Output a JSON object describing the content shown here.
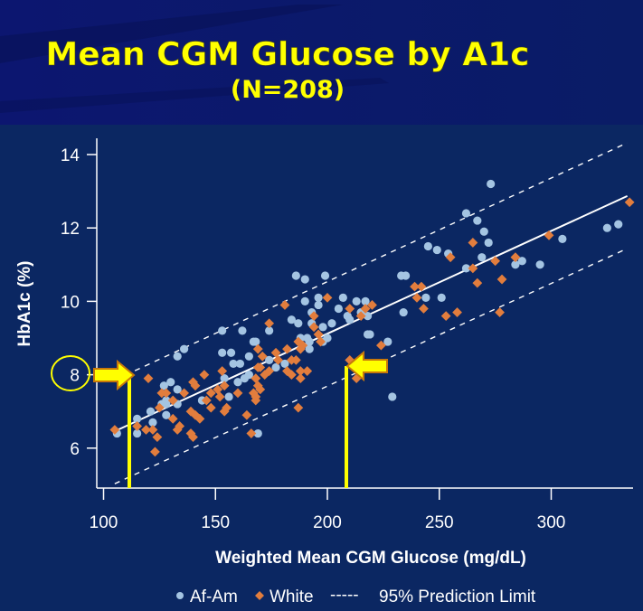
{
  "slide": {
    "title": "Mean CGM Glucose by A1c",
    "subtitle": "(N=208)"
  },
  "colors": {
    "header_bg": "#0a1a6e",
    "plot_bg": "#0b2762",
    "title": "#ffff00",
    "af_am": "#a4c4e2",
    "white": "#e27d3d",
    "annotation": "#ffff00",
    "annotation_outline": "#c8780a"
  },
  "chart_data": {
    "type": "scatter",
    "xlabel": "Weighted Mean CGM Glucose (mg/dL)",
    "ylabel": "HbA1c (%)",
    "xlim": [
      97,
      337
    ],
    "ylim": [
      4.9,
      14.45
    ],
    "x_ticks": [
      "100",
      "150",
      "200",
      "250",
      "300"
    ],
    "y_ticks": [
      "6",
      "8",
      "10",
      "12",
      "14"
    ],
    "grid": false,
    "legend_position": "bottom",
    "legend": {
      "af_am": "Af-Am",
      "white": "White",
      "dash_symbol": "-----",
      "prediction": "95% Prediction Limit"
    },
    "series": [
      {
        "name": "Af-Am",
        "marker": "circle",
        "points": [
          [
            106,
            6.4
          ],
          [
            115,
            6.8
          ],
          [
            115,
            6.4
          ],
          [
            121,
            7.0
          ],
          [
            122,
            6.7
          ],
          [
            127,
            7.7
          ],
          [
            130,
            7.8
          ],
          [
            133,
            7.6
          ],
          [
            128,
            7.3
          ],
          [
            126,
            7.2
          ],
          [
            128,
            7.2
          ],
          [
            133,
            7.2
          ],
          [
            128,
            6.9
          ],
          [
            133,
            8.5
          ],
          [
            136,
            8.7
          ],
          [
            153,
            9.2
          ],
          [
            162,
            9.2
          ],
          [
            153,
            8.6
          ],
          [
            157,
            8.6
          ],
          [
            158,
            8.3
          ],
          [
            161,
            8.3
          ],
          [
            165,
            8.5
          ],
          [
            167,
            8.9
          ],
          [
            154,
            7.9
          ],
          [
            160,
            7.8
          ],
          [
            144,
            7.3
          ],
          [
            156,
            7.4
          ],
          [
            163,
            7.9
          ],
          [
            165,
            8.0
          ],
          [
            169,
            6.4
          ],
          [
            186,
            10.7
          ],
          [
            190,
            10.6
          ],
          [
            199,
            10.7
          ],
          [
            233,
            10.7
          ],
          [
            235,
            10.7
          ],
          [
            245,
            11.5
          ],
          [
            190,
            10.0
          ],
          [
            196,
            10.1
          ],
          [
            196,
            9.9
          ],
          [
            207,
            10.1
          ],
          [
            213,
            10.0
          ],
          [
            217,
            10.0
          ],
          [
            205,
            9.8
          ],
          [
            193,
            9.7
          ],
          [
            184,
            9.5
          ],
          [
            187,
            9.4
          ],
          [
            193,
            9.4
          ],
          [
            198,
            9.3
          ],
          [
            202,
            9.4
          ],
          [
            209,
            9.6
          ],
          [
            210,
            9.5
          ],
          [
            215,
            9.7
          ],
          [
            218,
            9.6
          ],
          [
            234,
            9.7
          ],
          [
            244,
            10.1
          ],
          [
            218,
            9.1
          ],
          [
            219,
            9.1
          ],
          [
            227,
            8.9
          ],
          [
            174,
            9.2
          ],
          [
            168,
            8.9
          ],
          [
            188,
            9.0
          ],
          [
            191,
            9.0
          ],
          [
            192,
            8.9
          ],
          [
            192,
            8.7
          ],
          [
            200,
            9.0
          ],
          [
            198,
            8.9
          ],
          [
            174,
            8.4
          ],
          [
            181,
            8.3
          ],
          [
            177,
            8.2
          ],
          [
            229,
            7.4
          ],
          [
            273,
            13.2
          ],
          [
            262,
            12.4
          ],
          [
            267,
            12.2
          ],
          [
            270,
            11.9
          ],
          [
            272,
            11.6
          ],
          [
            249,
            11.4
          ],
          [
            254,
            11.3
          ],
          [
            269,
            11.2
          ],
          [
            262,
            10.9
          ],
          [
            287,
            11.1
          ],
          [
            284,
            11.0
          ],
          [
            295,
            11.0
          ],
          [
            305,
            11.7
          ],
          [
            325,
            12.0
          ],
          [
            330,
            12.1
          ],
          [
            251,
            10.1
          ]
        ]
      },
      {
        "name": "White",
        "marker": "diamond",
        "points": [
          [
            105,
            6.5
          ],
          [
            120,
            7.9
          ],
          [
            115,
            6.6
          ],
          [
            119,
            6.5
          ],
          [
            122,
            6.5
          ],
          [
            124,
            6.3
          ],
          [
            126,
            7.5
          ],
          [
            128,
            7.5
          ],
          [
            125,
            7.1
          ],
          [
            131,
            6.8
          ],
          [
            131,
            7.3
          ],
          [
            134,
            6.6
          ],
          [
            133,
            6.5
          ],
          [
            136,
            7.5
          ],
          [
            140,
            7.8
          ],
          [
            141,
            7.7
          ],
          [
            145,
            8.0
          ],
          [
            139,
            7.0
          ],
          [
            141,
            6.9
          ],
          [
            143,
            6.8
          ],
          [
            139,
            6.4
          ],
          [
            140,
            6.3
          ],
          [
            146,
            7.3
          ],
          [
            148,
            7.1
          ],
          [
            148,
            7.5
          ],
          [
            151,
            7.6
          ],
          [
            152,
            7.4
          ],
          [
            153,
            8.1
          ],
          [
            154,
            7.7
          ],
          [
            154,
            7.0
          ],
          [
            155,
            7.1
          ],
          [
            160,
            7.5
          ],
          [
            164,
            6.9
          ],
          [
            166,
            6.4
          ],
          [
            167,
            7.5
          ],
          [
            168,
            7.3
          ],
          [
            123,
            5.9
          ],
          [
            181,
            9.9
          ],
          [
            200,
            10.1
          ],
          [
            210,
            9.8
          ],
          [
            217,
            9.8
          ],
          [
            220,
            9.9
          ],
          [
            215,
            9.6
          ],
          [
            194,
            9.6
          ],
          [
            174,
            9.4
          ],
          [
            194,
            9.3
          ],
          [
            196,
            9.1
          ],
          [
            197,
            8.9
          ],
          [
            187,
            8.9
          ],
          [
            189,
            8.8
          ],
          [
            188,
            8.7
          ],
          [
            182,
            8.7
          ],
          [
            184,
            8.4
          ],
          [
            186,
            8.4
          ],
          [
            177,
            8.6
          ],
          [
            178,
            8.4
          ],
          [
            169,
            8.7
          ],
          [
            171,
            8.5
          ],
          [
            169,
            8.2
          ],
          [
            170,
            8.2
          ],
          [
            174,
            8.1
          ],
          [
            172,
            8.0
          ],
          [
            182,
            8.1
          ],
          [
            184,
            8.0
          ],
          [
            188,
            8.1
          ],
          [
            191,
            8.1
          ],
          [
            188,
            7.9
          ],
          [
            168,
            7.9
          ],
          [
            169,
            7.7
          ],
          [
            170,
            7.6
          ],
          [
            168,
            7.4
          ],
          [
            210,
            8.4
          ],
          [
            213,
            7.9
          ],
          [
            224,
            8.8
          ],
          [
            239,
            10.4
          ],
          [
            242,
            10.4
          ],
          [
            240,
            10.1
          ],
          [
            243,
            9.8
          ],
          [
            187,
            7.1
          ],
          [
            265,
            11.6
          ],
          [
            255,
            11.2
          ],
          [
            275,
            11.1
          ],
          [
            265,
            10.9
          ],
          [
            284,
            11.2
          ],
          [
            278,
            10.6
          ],
          [
            267,
            10.5
          ],
          [
            253,
            9.6
          ],
          [
            258,
            9.7
          ],
          [
            277,
            9.7
          ],
          [
            299,
            11.8
          ],
          [
            335,
            12.7
          ]
        ]
      }
    ],
    "regression_line": [
      [
        105,
        6.46
      ],
      [
        334,
        12.87
      ]
    ],
    "prediction_upper": [
      [
        114,
        8.11
      ],
      [
        334,
        14.32
      ]
    ],
    "prediction_lower": [
      [
        105,
        5.03
      ],
      [
        334,
        11.44
      ]
    ],
    "annotations": {
      "highlighted_y_tick": "8",
      "arrows_at_hba1c": 8,
      "marker_glucose_values": [
        111.5,
        208.5
      ]
    }
  }
}
